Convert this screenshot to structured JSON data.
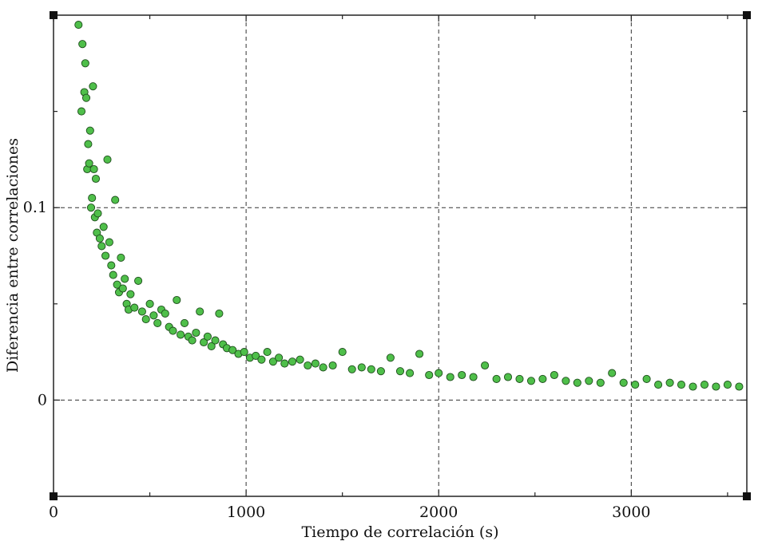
{
  "chart_data": {
    "type": "scatter",
    "title": "",
    "xlabel": "Tiempo de correlación (s)",
    "ylabel": "Diferencia entre correlaciones",
    "xlim": [
      0,
      3600
    ],
    "ylim": [
      -0.05,
      0.2
    ],
    "x_ticks": [
      0,
      1000,
      2000,
      3000
    ],
    "x_tick_labels": [
      "0",
      "1000",
      "2000",
      "3000"
    ],
    "y_ticks": [
      0,
      0.1
    ],
    "y_tick_labels": [
      "0",
      "0.1"
    ],
    "grid": true,
    "marker_color": "#4fbf4a",
    "marker_edge_color": "#1e4d1c",
    "series": [
      {
        "x": [
          130,
          145,
          150,
          160,
          165,
          170,
          175,
          180,
          185,
          190,
          195,
          200,
          205,
          210,
          215,
          220,
          225,
          230,
          240,
          250,
          260,
          270,
          280,
          290,
          300,
          310,
          320,
          330,
          340,
          350,
          360,
          370,
          380,
          390,
          400,
          420,
          440,
          460,
          480,
          500,
          520,
          540,
          560,
          580,
          600,
          620,
          640,
          660,
          680,
          700,
          720,
          740,
          760,
          780,
          800,
          820,
          840,
          860,
          880,
          900,
          930,
          960,
          990,
          1020,
          1050,
          1080,
          1110,
          1140,
          1170,
          1200,
          1240,
          1280,
          1320,
          1360,
          1400,
          1450,
          1500,
          1550,
          1600,
          1650,
          1700,
          1750,
          1800,
          1850,
          1900,
          1950,
          2000,
          2060,
          2120,
          2180,
          2240,
          2300,
          2360,
          2420,
          2480,
          2540,
          2600,
          2660,
          2720,
          2780,
          2840,
          2900,
          2960,
          3020,
          3080,
          3140,
          3200,
          3260,
          3320,
          3380,
          3440,
          3500,
          3560
        ],
        "y": [
          0.195,
          0.15,
          0.185,
          0.16,
          0.175,
          0.157,
          0.12,
          0.133,
          0.123,
          0.14,
          0.1,
          0.105,
          0.163,
          0.12,
          0.095,
          0.115,
          0.087,
          0.097,
          0.084,
          0.08,
          0.09,
          0.075,
          0.125,
          0.082,
          0.07,
          0.065,
          0.104,
          0.06,
          0.056,
          0.074,
          0.058,
          0.063,
          0.05,
          0.047,
          0.055,
          0.048,
          0.062,
          0.046,
          0.042,
          0.05,
          0.044,
          0.04,
          0.047,
          0.045,
          0.038,
          0.036,
          0.052,
          0.034,
          0.04,
          0.033,
          0.031,
          0.035,
          0.046,
          0.03,
          0.033,
          0.028,
          0.031,
          0.045,
          0.029,
          0.027,
          0.026,
          0.024,
          0.025,
          0.022,
          0.023,
          0.021,
          0.025,
          0.02,
          0.022,
          0.019,
          0.02,
          0.021,
          0.018,
          0.019,
          0.017,
          0.018,
          0.025,
          0.016,
          0.017,
          0.016,
          0.015,
          0.022,
          0.015,
          0.014,
          0.024,
          0.013,
          0.014,
          0.012,
          0.013,
          0.012,
          0.018,
          0.011,
          0.012,
          0.011,
          0.01,
          0.011,
          0.013,
          0.01,
          0.009,
          0.01,
          0.009,
          0.014,
          0.009,
          0.008,
          0.011,
          0.008,
          0.009,
          0.008,
          0.007,
          0.008,
          0.007,
          0.008,
          0.007
        ]
      }
    ]
  }
}
